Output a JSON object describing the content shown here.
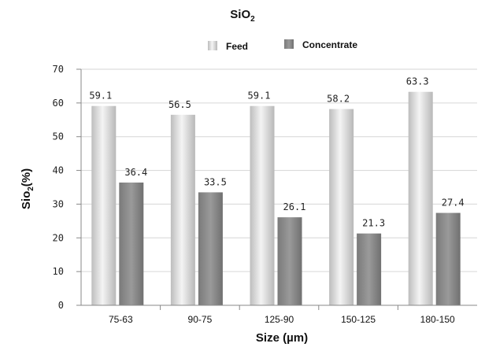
{
  "chart_data": {
    "type": "bar",
    "title": "SiO",
    "title_sub": "2",
    "xlabel": "Size (µm)",
    "ylabel": "Sio",
    "ylabel_sub": "2",
    "ylabel_suffix": "(%)",
    "categories": [
      "75-63",
      "90-75",
      "125-90",
      "150-125",
      "180-150"
    ],
    "series": [
      {
        "name": "Feed",
        "values": [
          59.1,
          56.5,
          59.1,
          58.2,
          63.3
        ],
        "color": "#d9d9d9"
      },
      {
        "name": "Concentrate",
        "values": [
          36.4,
          33.5,
          26.1,
          21.3,
          27.4
        ],
        "color": "#8c8c8c"
      }
    ],
    "data_labels": [
      [
        "59.1",
        "56.5",
        "59.1",
        "58.2",
        "63.3"
      ],
      [
        "36.4",
        "33.5",
        "26.1",
        "21.3",
        "27.4"
      ]
    ],
    "ylim": [
      0,
      70
    ],
    "yticks": [
      0,
      10,
      20,
      30,
      40,
      50,
      60,
      70
    ],
    "grid": true,
    "legend_position": "top"
  }
}
